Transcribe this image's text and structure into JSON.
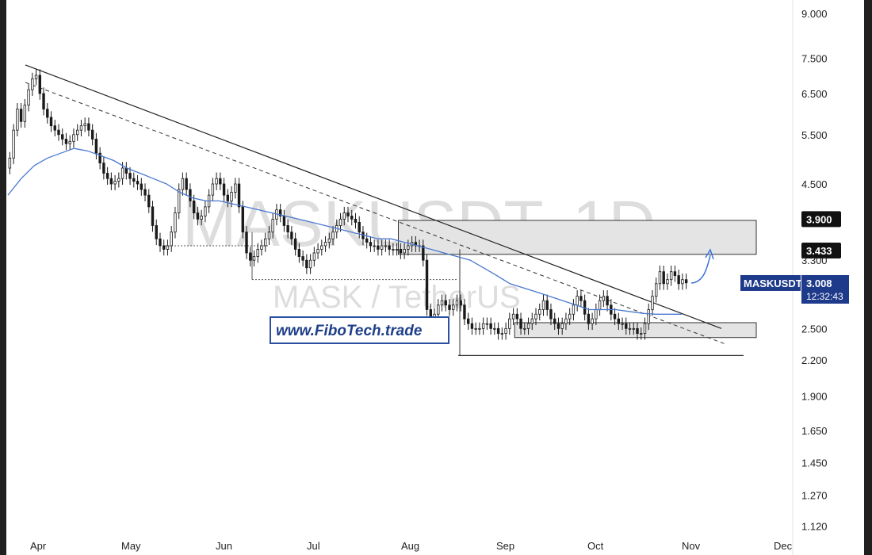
{
  "chart_data": {
    "type": "candlestick",
    "watermark": {
      "symbol": "MASKUSDT, 1D",
      "pair": "MASK / TetherUS"
    },
    "website": "www.FiboTech.trade",
    "y_scale": "log",
    "ylim": [
      1.05,
      10.2
    ],
    "y_ticks": [
      {
        "value": 9.0,
        "label": "9.000"
      },
      {
        "value": 7.5,
        "label": "7.500"
      },
      {
        "value": 6.5,
        "label": "6.500"
      },
      {
        "value": 5.5,
        "label": "5.500"
      },
      {
        "value": 4.5,
        "label": "4.500"
      },
      {
        "value": 2.5,
        "label": "2.500"
      },
      {
        "value": 2.2,
        "label": "2.200"
      },
      {
        "value": 1.9,
        "label": "1.900"
      },
      {
        "value": 1.65,
        "label": "1.650"
      },
      {
        "value": 1.45,
        "label": "1.450"
      },
      {
        "value": 1.27,
        "label": "1.270"
      },
      {
        "value": 1.12,
        "label": "1.120"
      }
    ],
    "x_ticks": [
      "Apr",
      "May",
      "Jun",
      "Jul",
      "Aug",
      "Sep",
      "Oct",
      "Nov",
      "Dec"
    ],
    "price_labels": [
      {
        "value": 3.9,
        "label": "3.900",
        "style": "black"
      },
      {
        "value": 3.433,
        "label": "3.433",
        "style": "black"
      },
      {
        "value": 3.3,
        "label": "3.300",
        "style": "partial"
      }
    ],
    "current_price": {
      "symbol": "MASKUSDT",
      "value": 3.008,
      "label": "3.008",
      "countdown": "12:32:43",
      "color": "#1e3a8a"
    },
    "daily_closes": [
      5.0,
      5.6,
      6.1,
      5.8,
      6.2,
      6.6,
      6.9,
      7.0,
      6.5,
      6.1,
      5.9,
      5.7,
      5.6,
      5.5,
      5.4,
      5.3,
      5.35,
      5.5,
      5.6,
      5.7,
      5.75,
      5.6,
      5.4,
      5.1,
      4.9,
      4.7,
      4.6,
      4.5,
      4.55,
      4.6,
      4.8,
      4.7,
      4.6,
      4.55,
      4.5,
      4.4,
      4.3,
      4.1,
      3.8,
      3.6,
      3.5,
      3.45,
      3.5,
      3.7,
      4.0,
      4.4,
      4.6,
      4.4,
      4.2,
      4.0,
      3.9,
      3.95,
      4.1,
      4.3,
      4.5,
      4.6,
      4.5,
      4.3,
      4.2,
      4.35,
      4.5,
      4.1,
      3.7,
      3.4,
      3.3,
      3.35,
      3.45,
      3.5,
      3.6,
      3.7,
      3.9,
      4.05,
      3.95,
      3.8,
      3.7,
      3.6,
      3.45,
      3.35,
      3.3,
      3.2,
      3.3,
      3.4,
      3.45,
      3.5,
      3.55,
      3.6,
      3.7,
      3.8,
      3.9,
      4.0,
      3.95,
      3.9,
      3.85,
      3.7,
      3.6,
      3.55,
      3.5,
      3.5,
      3.45,
      3.5,
      3.5,
      3.45,
      3.45,
      3.45,
      3.4,
      3.45,
      3.5,
      3.55,
      3.5,
      3.5,
      3.3,
      2.7,
      2.6,
      2.65,
      2.75,
      2.8,
      2.75,
      2.7,
      2.75,
      2.8,
      2.75,
      2.6,
      2.55,
      2.5,
      2.5,
      2.5,
      2.55,
      2.55,
      2.5,
      2.5,
      2.45,
      2.45,
      2.5,
      2.6,
      2.65,
      2.6,
      2.5,
      2.5,
      2.55,
      2.6,
      2.65,
      2.7,
      2.8,
      2.7,
      2.6,
      2.55,
      2.5,
      2.55,
      2.6,
      2.65,
      2.75,
      2.85,
      2.8,
      2.65,
      2.55,
      2.6,
      2.7,
      2.8,
      2.85,
      2.75,
      2.65,
      2.6,
      2.55,
      2.55,
      2.5,
      2.5,
      2.5,
      2.45,
      2.45,
      2.55,
      2.7,
      2.85,
      3.0,
      3.15,
      3.0,
      3.05,
      3.15,
      3.1,
      3.0,
      3.05,
      3.01
    ],
    "ma_line": [
      4.3,
      4.6,
      4.85,
      5.0,
      5.1,
      5.2,
      5.15,
      5.05,
      4.95,
      4.8,
      4.7,
      4.6,
      4.5,
      4.35,
      4.25,
      4.2,
      4.2,
      4.15,
      4.1,
      4.05,
      4.0,
      3.95,
      3.9,
      3.85,
      3.8,
      3.75,
      3.7,
      3.65,
      3.6,
      3.6,
      3.55,
      3.5,
      3.45,
      3.4,
      3.35,
      3.3,
      3.2,
      3.1,
      3.0,
      2.95,
      2.9,
      2.85,
      2.8,
      2.75,
      2.7,
      2.7,
      2.7,
      2.68,
      2.66,
      2.65,
      2.65,
      2.65
    ],
    "resistance_zone": [
      3.38,
      3.88
    ],
    "support_zone": [
      2.41,
      2.56
    ],
    "support_line": 2.24,
    "trendline_main": [
      7.3,
      2.5
    ],
    "trendline_dashed": [
      6.8,
      2.35
    ]
  }
}
